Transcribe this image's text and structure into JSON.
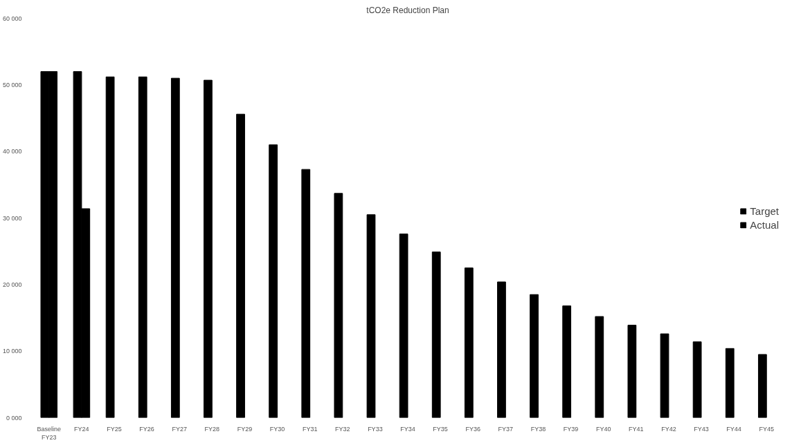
{
  "chart_data": {
    "type": "bar",
    "title": "tCO2e Reduction Plan",
    "categories": [
      "Baseline\nFY23",
      "FY24",
      "FY25",
      "FY26",
      "FY27",
      "FY28",
      "FY29",
      "FY30",
      "FY31",
      "FY32",
      "FY33",
      "FY34",
      "FY35",
      "FY36",
      "FY37",
      "FY38",
      "FY39",
      "FY40",
      "FY41",
      "FY42",
      "FY43",
      "FY44",
      "FY45"
    ],
    "series": [
      {
        "name": "Target",
        "color": "#000000",
        "values": [
          52000,
          52000,
          51200,
          51200,
          51000,
          50700,
          45600,
          41000,
          37300,
          33700,
          30500,
          27600,
          24900,
          22500,
          20400,
          18500,
          16800,
          15200,
          13900,
          12600,
          11400,
          10400,
          9500
        ]
      },
      {
        "name": "Actual",
        "color": "#000000",
        "values": [
          52000,
          31400,
          null,
          null,
          null,
          null,
          null,
          null,
          null,
          null,
          null,
          null,
          null,
          null,
          null,
          null,
          null,
          null,
          null,
          null,
          null,
          null,
          null
        ]
      }
    ],
    "ylim": [
      0,
      60000
    ],
    "yticks": [
      {
        "value": 0,
        "label": "0 000"
      },
      {
        "value": 10000,
        "label": "10 000"
      },
      {
        "value": 20000,
        "label": "20 000"
      },
      {
        "value": 30000,
        "label": "30 000"
      },
      {
        "value": 40000,
        "label": "40 000"
      },
      {
        "value": 50000,
        "label": "50 000"
      },
      {
        "value": 60000,
        "label": "60 000"
      }
    ],
    "grid": false,
    "legend": "right"
  }
}
